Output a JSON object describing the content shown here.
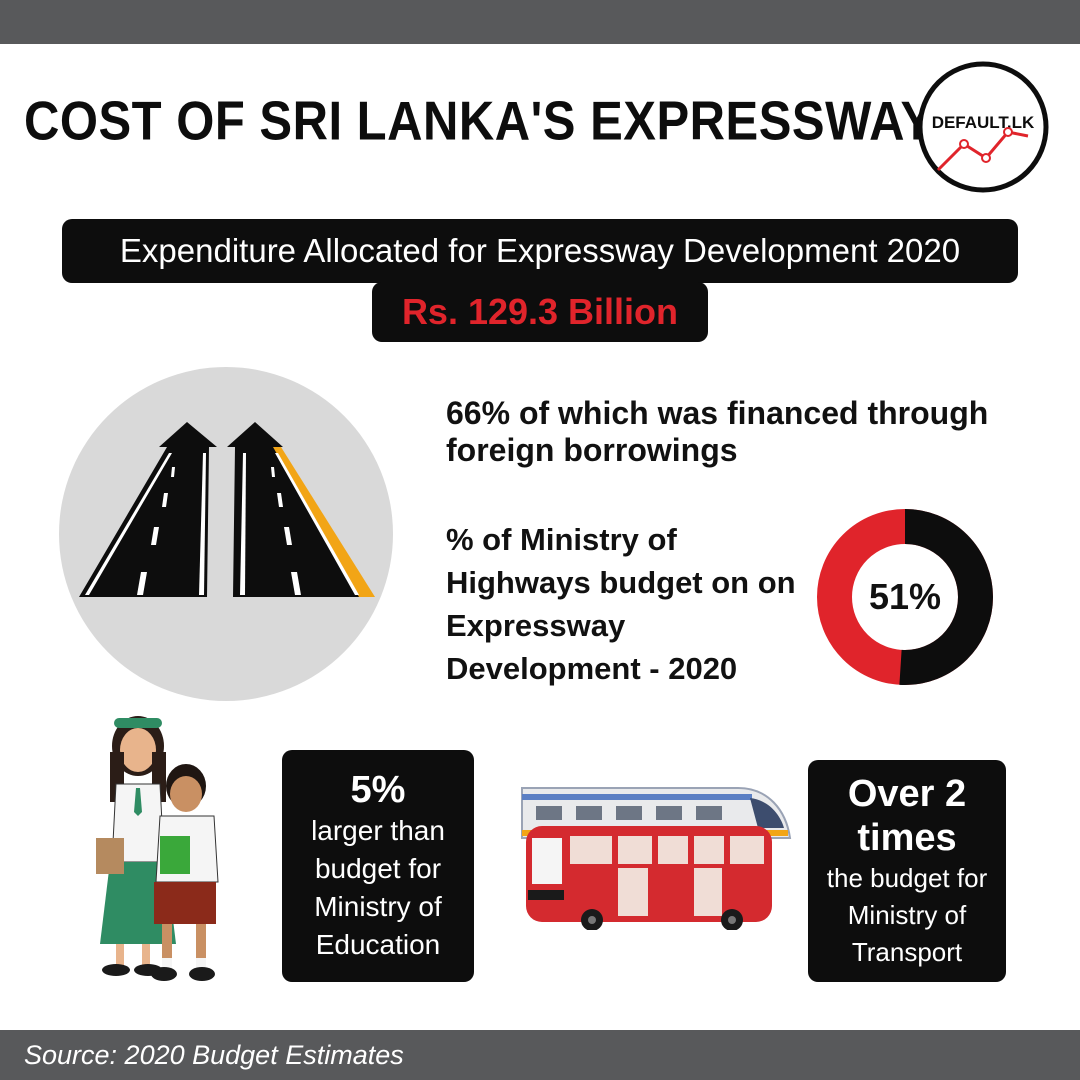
{
  "header": {
    "title": "COST OF SRI LANKA'S EXPRESSWAYS"
  },
  "logo": {
    "text": "DEFAULT.LK"
  },
  "expenditure": {
    "label": "Expenditure Allocated for Expressway Development 2020",
    "amount": "Rs. 129.3 Billion"
  },
  "foreign": {
    "text": "66% of  which was financed through foreign borrowings"
  },
  "ministry_share": {
    "text": "% of Ministry of Highways budget on on Expressway Development - 2020",
    "value_label": "51%",
    "value": 51
  },
  "education": {
    "big": "5%",
    "text": "larger than budget for Ministry of Education"
  },
  "transport": {
    "big": "Over 2 times",
    "text": "the budget for Ministry of Transport"
  },
  "footer": {
    "source": "Source: 2020 Budget Estimates"
  },
  "colors": {
    "accent_red": "#e0242b",
    "dark": "#0d0d0d",
    "gray_bar": "#58595b",
    "circle_gray": "#d9d9d9",
    "road_yellow": "#f2a516"
  }
}
